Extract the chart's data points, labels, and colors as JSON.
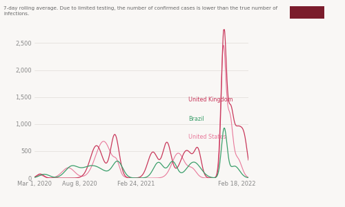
{
  "title_note": "7-day rolling average. Due to limited testing, the number of confirmed cases is lower than the true number of\ninfections.",
  "legend_box_color": "#7B1C2C",
  "uk_color": "#C8375A",
  "brazil_color": "#3A9E6A",
  "us_color": "#E8789A",
  "background_color": "#f9f7f5",
  "ylabel_vals": [
    0,
    500,
    1000,
    1500,
    2000,
    2500
  ],
  "xlabels": [
    "Mar 1, 2020",
    "Aug 8, 2020",
    "Feb 24, 2021",
    "Feb 18, 2022"
  ],
  "legend_labels": [
    "United Kingdom",
    "Brazil",
    "United States"
  ],
  "note_fontsize": 5.2,
  "tick_fontsize": 6.0
}
